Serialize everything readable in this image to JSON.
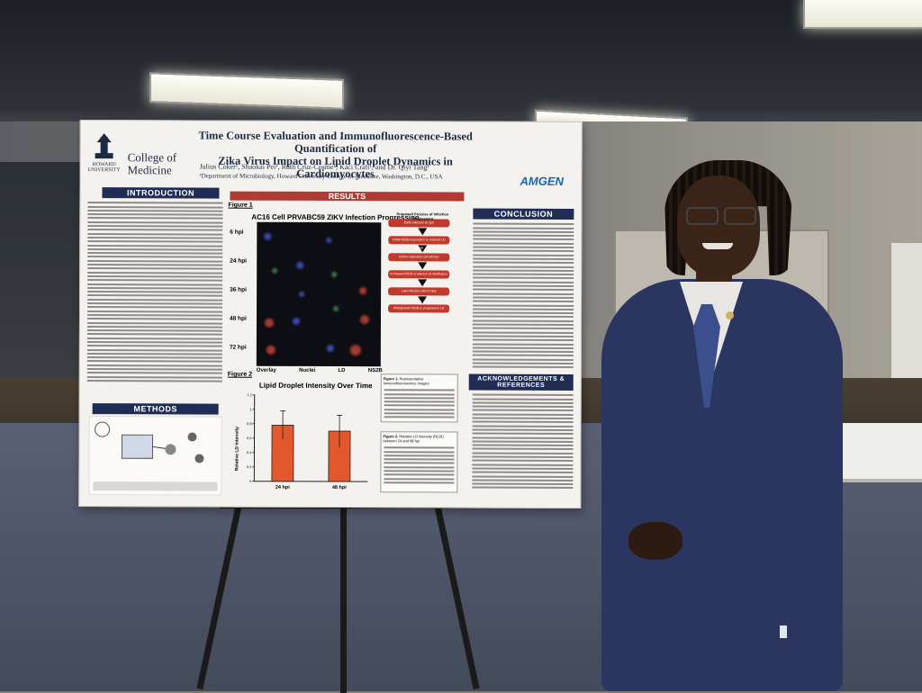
{
  "poster": {
    "title_line1": "Time Course Evaluation and Immunofluorescence-Based Quantification of",
    "title_line2": "Zika Virus Impact on Lipid Droplet Dynamics in Cardiomyocytes",
    "authors": "Julius Coker¹, Shaokai Pei¹, Ruth Cruz-Cosme¹, Kaci Craft¹, and Dr. Qiyi Tang¹",
    "affiliation": "¹Department of Microbiology, Howard University College of Medicine, Washington, D.C., USA",
    "university_name": "HOWARD UNIVERSITY",
    "college_name": "College of Medicine",
    "sponsor_logo": "AMGEN",
    "sections": {
      "introduction": "INTRODUCTION",
      "methods": "METHODS",
      "results": "RESULTS",
      "conclusion": "CONCLUSION",
      "acknowledgements": "ACKNOWLEDGEMENTS & REFERENCES"
    },
    "figure1": {
      "label": "Figure 1",
      "heading": "AC16 Cell PRVABC59 ZIKV Infection Progression",
      "timepoints": [
        "6 hpi",
        "24 hpi",
        "36 hpi",
        "48 hpi",
        "72 hpi"
      ],
      "channels": [
        "Overlay",
        "Nuclei",
        "LD",
        "NS2B"
      ],
      "flow_title": "Proposed Process of Infection Progression",
      "flow_steps": [
        "Early infection (6 hpi)",
        "Initial NS2B expression & reduced LD signal",
        "Active replication (24-36 hpi)",
        "Increased NS2B & altered LD distribution",
        "Late infection (48-72 hpi)",
        "Widespread NS2B & progressive LD depletion"
      ]
    },
    "figure2": {
      "label": "Figure 2",
      "heading": "Lipid Droplet Intensity Over Time",
      "ylabel": "Relative LD Intensity",
      "caption_label": "Figure 2.",
      "caption_text": "Relative LD intensity (RLDI) between 24 and 48 hpi"
    },
    "figure1_caption_label": "Figure 1.",
    "figure1_caption_text": "Representative immunofluorescence images"
  },
  "chart_data": {
    "type": "bar",
    "title": "Lipid Droplet Intensity Over Time",
    "categories": [
      "24 hpi",
      "48 hpi"
    ],
    "values": [
      0.78,
      0.7
    ],
    "errors": [
      0.2,
      0.22
    ],
    "ylabel": "Relative LD Intensity",
    "ylim": [
      0,
      1.2
    ],
    "yticks": [
      "0",
      "0.2",
      "0.4",
      "0.6",
      "0.8",
      "1",
      "1.2"
    ],
    "bar_color": "#e2572b"
  },
  "colors": {
    "section_header": "#1f2d55",
    "results_header": "#b13a32",
    "suit": "#2a3560"
  }
}
